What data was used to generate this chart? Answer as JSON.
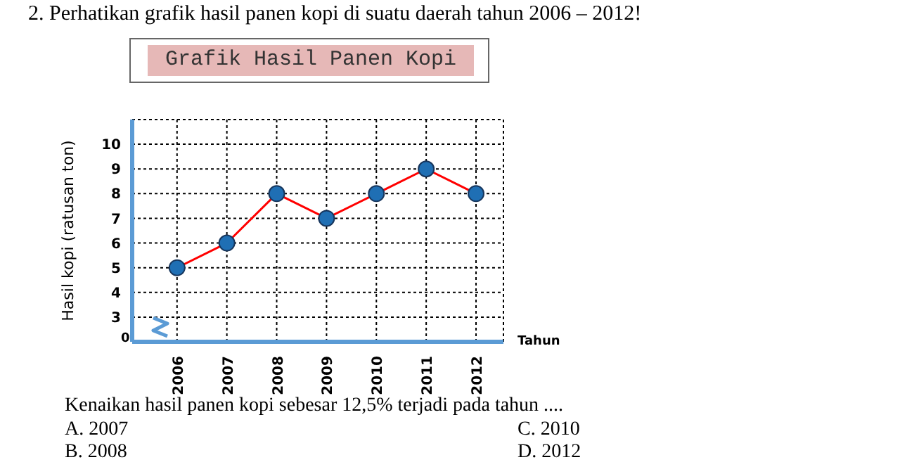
{
  "chart_data": {
    "type": "line",
    "title": "2.    Perhatikan grafik hasil panen kopi di suatu daerah tahun 2006 – 2012!",
    "subtitle": "Grafik Hasil Panen Kopi",
    "xlabel": "Tahun",
    "ylabel": "Hasil kopi (ratusan ton)",
    "categories": [
      "2006",
      "2007",
      "2008",
      "2009",
      "2010",
      "2011",
      "2012"
    ],
    "series": [
      {
        "color": "#ff0000",
        "colors": [
          "#1f6fb4",
          "#1f6fb4",
          "#1f6fb4",
          "#1f6fb4",
          "#1f6fb4",
          "#1f6fb4",
          "#1f6fb4"
        ],
        "values": [
          5,
          6,
          8,
          7,
          8,
          9,
          8
        ]
      }
    ],
    "ylim": [
      2,
      11
    ],
    "yticks": [
      3,
      4,
      5,
      6,
      7,
      8,
      9,
      10
    ],
    "grid": true,
    "marker": "circle",
    "annotations": [
      "0",
      "Kenaikan hasil panen kopi sebesar 12,5% terjadi pada tahun ....",
      "A. 2007",
      "B. 2008",
      "C. 2010",
      "D. 2012"
    ]
  }
}
